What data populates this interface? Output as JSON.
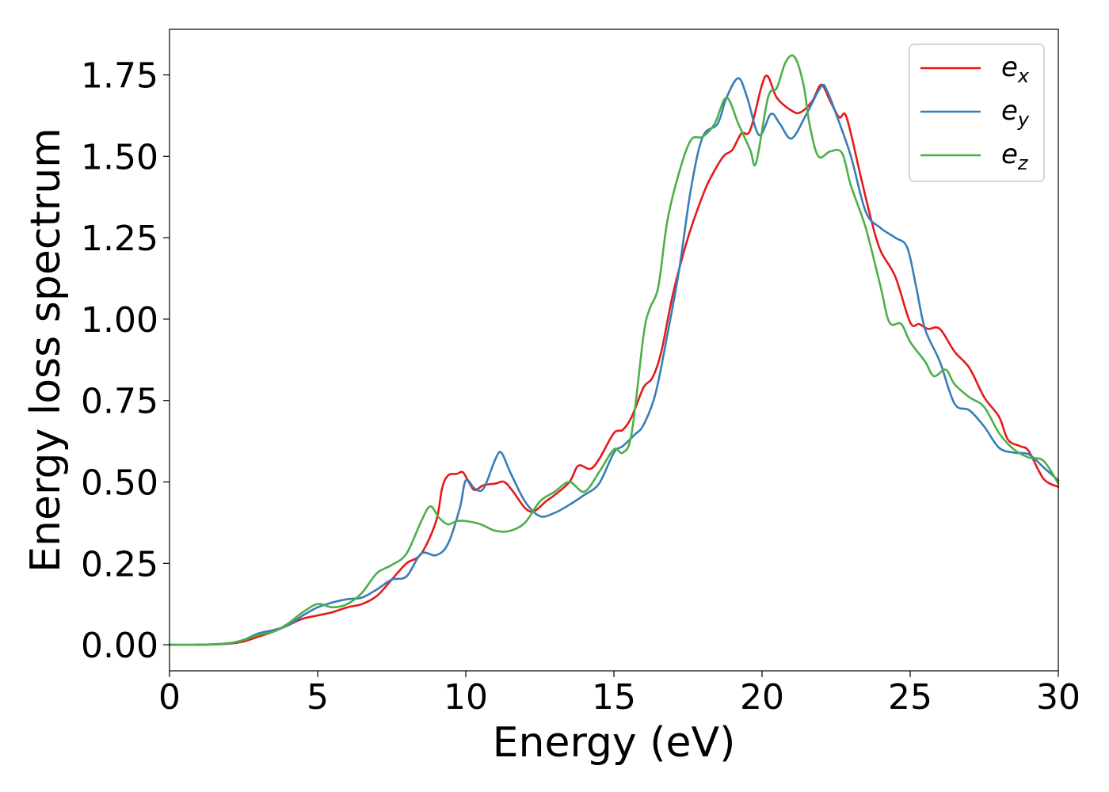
{
  "chart_data": {
    "type": "line",
    "xlabel": "Energy (eV)",
    "ylabel": "Energy loss spectrum",
    "xlim": [
      0,
      30
    ],
    "ylim": [
      -0.08,
      1.89
    ],
    "xticks": [
      0,
      5,
      10,
      15,
      20,
      25,
      30
    ],
    "xtick_labels": [
      "0",
      "5",
      "10",
      "15",
      "20",
      "25",
      "30"
    ],
    "yticks": [
      0,
      0.25,
      0.5,
      0.75,
      1.0,
      1.25,
      1.5,
      1.75
    ],
    "ytick_labels": [
      "0.00",
      "0.25",
      "0.50",
      "0.75",
      "1.00",
      "1.25",
      "1.50",
      "1.75"
    ],
    "grid": false,
    "legend_position": "top-right",
    "series": [
      {
        "name": "e_x",
        "label_base": "e",
        "label_sub": "x",
        "color": "#e41a1c",
        "points": [
          [
            0,
            0
          ],
          [
            1,
            0
          ],
          [
            2,
            0.003
          ],
          [
            2.5,
            0.01
          ],
          [
            3,
            0.025
          ],
          [
            3.5,
            0.04
          ],
          [
            4,
            0.06
          ],
          [
            4.5,
            0.08
          ],
          [
            5,
            0.09
          ],
          [
            5.5,
            0.1
          ],
          [
            6,
            0.115
          ],
          [
            6.5,
            0.125
          ],
          [
            7,
            0.15
          ],
          [
            7.5,
            0.2
          ],
          [
            8,
            0.25
          ],
          [
            8.5,
            0.28
          ],
          [
            9,
            0.38
          ],
          [
            9.2,
            0.48
          ],
          [
            9.4,
            0.52
          ],
          [
            9.7,
            0.525
          ],
          [
            9.9,
            0.53
          ],
          [
            10.1,
            0.5
          ],
          [
            10.3,
            0.475
          ],
          [
            10.6,
            0.49
          ],
          [
            11,
            0.495
          ],
          [
            11.3,
            0.5
          ],
          [
            11.6,
            0.47
          ],
          [
            12,
            0.42
          ],
          [
            12.3,
            0.41
          ],
          [
            12.7,
            0.44
          ],
          [
            13,
            0.46
          ],
          [
            13.5,
            0.5
          ],
          [
            13.8,
            0.55
          ],
          [
            14.2,
            0.54
          ],
          [
            14.5,
            0.57
          ],
          [
            15,
            0.65
          ],
          [
            15.3,
            0.66
          ],
          [
            15.6,
            0.7
          ],
          [
            16,
            0.79
          ],
          [
            16.3,
            0.82
          ],
          [
            16.6,
            0.9
          ],
          [
            17,
            1.08
          ],
          [
            17.5,
            1.25
          ],
          [
            18,
            1.38
          ],
          [
            18.3,
            1.44
          ],
          [
            18.7,
            1.5
          ],
          [
            19,
            1.52
          ],
          [
            19.3,
            1.57
          ],
          [
            19.6,
            1.58
          ],
          [
            20,
            1.72
          ],
          [
            20.2,
            1.745
          ],
          [
            20.5,
            1.68
          ],
          [
            21,
            1.64
          ],
          [
            21.3,
            1.635
          ],
          [
            21.7,
            1.67
          ],
          [
            22,
            1.72
          ],
          [
            22.3,
            1.67
          ],
          [
            22.6,
            1.62
          ],
          [
            22.8,
            1.63
          ],
          [
            23,
            1.57
          ],
          [
            23.3,
            1.45
          ],
          [
            23.7,
            1.3
          ],
          [
            24,
            1.21
          ],
          [
            24.5,
            1.13
          ],
          [
            25,
            0.99
          ],
          [
            25.3,
            0.985
          ],
          [
            25.6,
            0.97
          ],
          [
            26,
            0.97
          ],
          [
            26.5,
            0.9
          ],
          [
            27,
            0.85
          ],
          [
            27.5,
            0.76
          ],
          [
            28,
            0.7
          ],
          [
            28.3,
            0.63
          ],
          [
            28.7,
            0.61
          ],
          [
            29,
            0.595
          ],
          [
            29.5,
            0.51
          ],
          [
            30,
            0.485
          ]
        ]
      },
      {
        "name": "e_y",
        "label_base": "e",
        "label_sub": "y",
        "color": "#377eb8",
        "points": [
          [
            0,
            0
          ],
          [
            1,
            0
          ],
          [
            2,
            0.004
          ],
          [
            2.5,
            0.015
          ],
          [
            3,
            0.035
          ],
          [
            3.5,
            0.045
          ],
          [
            4,
            0.06
          ],
          [
            4.5,
            0.09
          ],
          [
            5,
            0.115
          ],
          [
            5.5,
            0.13
          ],
          [
            6,
            0.14
          ],
          [
            6.5,
            0.145
          ],
          [
            7,
            0.17
          ],
          [
            7.5,
            0.2
          ],
          [
            8,
            0.21
          ],
          [
            8.5,
            0.28
          ],
          [
            9,
            0.275
          ],
          [
            9.4,
            0.31
          ],
          [
            9.8,
            0.42
          ],
          [
            10,
            0.505
          ],
          [
            10.3,
            0.48
          ],
          [
            10.6,
            0.48
          ],
          [
            11,
            0.57
          ],
          [
            11.2,
            0.59
          ],
          [
            11.5,
            0.53
          ],
          [
            12,
            0.44
          ],
          [
            12.5,
            0.395
          ],
          [
            13,
            0.405
          ],
          [
            13.5,
            0.43
          ],
          [
            14,
            0.46
          ],
          [
            14.5,
            0.495
          ],
          [
            15,
            0.59
          ],
          [
            15.3,
            0.61
          ],
          [
            15.7,
            0.645
          ],
          [
            16,
            0.675
          ],
          [
            16.4,
            0.77
          ],
          [
            16.8,
            0.95
          ],
          [
            17.2,
            1.15
          ],
          [
            17.6,
            1.4
          ],
          [
            18,
            1.56
          ],
          [
            18.5,
            1.6
          ],
          [
            18.8,
            1.68
          ],
          [
            19.2,
            1.74
          ],
          [
            19.5,
            1.68
          ],
          [
            19.9,
            1.565
          ],
          [
            20.3,
            1.63
          ],
          [
            20.6,
            1.6
          ],
          [
            21,
            1.555
          ],
          [
            21.5,
            1.63
          ],
          [
            22,
            1.715
          ],
          [
            22.2,
            1.7
          ],
          [
            22.5,
            1.63
          ],
          [
            23,
            1.5
          ],
          [
            23.5,
            1.33
          ],
          [
            24,
            1.28
          ],
          [
            24.5,
            1.25
          ],
          [
            24.9,
            1.22
          ],
          [
            25.2,
            1.1
          ],
          [
            25.5,
            0.97
          ],
          [
            26,
            0.87
          ],
          [
            26.5,
            0.74
          ],
          [
            27,
            0.72
          ],
          [
            27.5,
            0.67
          ],
          [
            28,
            0.605
          ],
          [
            28.5,
            0.59
          ],
          [
            29,
            0.585
          ],
          [
            29.5,
            0.545
          ],
          [
            30,
            0.505
          ]
        ]
      },
      {
        "name": "e_z",
        "label_base": "e",
        "label_sub": "z",
        "color": "#4daf4a",
        "points": [
          [
            0,
            0
          ],
          [
            1,
            0
          ],
          [
            2,
            0.005
          ],
          [
            2.5,
            0.015
          ],
          [
            3,
            0.03
          ],
          [
            3.5,
            0.04
          ],
          [
            4,
            0.065
          ],
          [
            4.5,
            0.1
          ],
          [
            5,
            0.125
          ],
          [
            5.5,
            0.115
          ],
          [
            6,
            0.125
          ],
          [
            6.5,
            0.16
          ],
          [
            7,
            0.22
          ],
          [
            7.5,
            0.245
          ],
          [
            8,
            0.28
          ],
          [
            8.5,
            0.38
          ],
          [
            8.8,
            0.425
          ],
          [
            9.1,
            0.39
          ],
          [
            9.4,
            0.37
          ],
          [
            9.7,
            0.38
          ],
          [
            10,
            0.38
          ],
          [
            10.5,
            0.37
          ],
          [
            11,
            0.35
          ],
          [
            11.5,
            0.35
          ],
          [
            12,
            0.375
          ],
          [
            12.5,
            0.44
          ],
          [
            13,
            0.47
          ],
          [
            13.5,
            0.5
          ],
          [
            14,
            0.47
          ],
          [
            14.5,
            0.53
          ],
          [
            15,
            0.6
          ],
          [
            15.3,
            0.59
          ],
          [
            15.6,
            0.65
          ],
          [
            16,
            0.95
          ],
          [
            16.2,
            1.03
          ],
          [
            16.5,
            1.1
          ],
          [
            16.8,
            1.3
          ],
          [
            17.2,
            1.45
          ],
          [
            17.6,
            1.55
          ],
          [
            18,
            1.56
          ],
          [
            18.4,
            1.6
          ],
          [
            18.8,
            1.68
          ],
          [
            19.2,
            1.6
          ],
          [
            19.6,
            1.52
          ],
          [
            19.8,
            1.48
          ],
          [
            20.2,
            1.68
          ],
          [
            20.5,
            1.71
          ],
          [
            20.8,
            1.79
          ],
          [
            21.1,
            1.805
          ],
          [
            21.4,
            1.72
          ],
          [
            21.6,
            1.6
          ],
          [
            21.9,
            1.5
          ],
          [
            22.3,
            1.515
          ],
          [
            22.7,
            1.51
          ],
          [
            23,
            1.41
          ],
          [
            23.5,
            1.28
          ],
          [
            24,
            1.1
          ],
          [
            24.3,
            0.99
          ],
          [
            24.7,
            0.985
          ],
          [
            25,
            0.93
          ],
          [
            25.5,
            0.87
          ],
          [
            25.8,
            0.825
          ],
          [
            26.2,
            0.845
          ],
          [
            26.5,
            0.8
          ],
          [
            27,
            0.76
          ],
          [
            27.5,
            0.73
          ],
          [
            28,
            0.65
          ],
          [
            28.5,
            0.6
          ],
          [
            29,
            0.575
          ],
          [
            29.5,
            0.565
          ],
          [
            30,
            0.495
          ]
        ]
      }
    ]
  }
}
